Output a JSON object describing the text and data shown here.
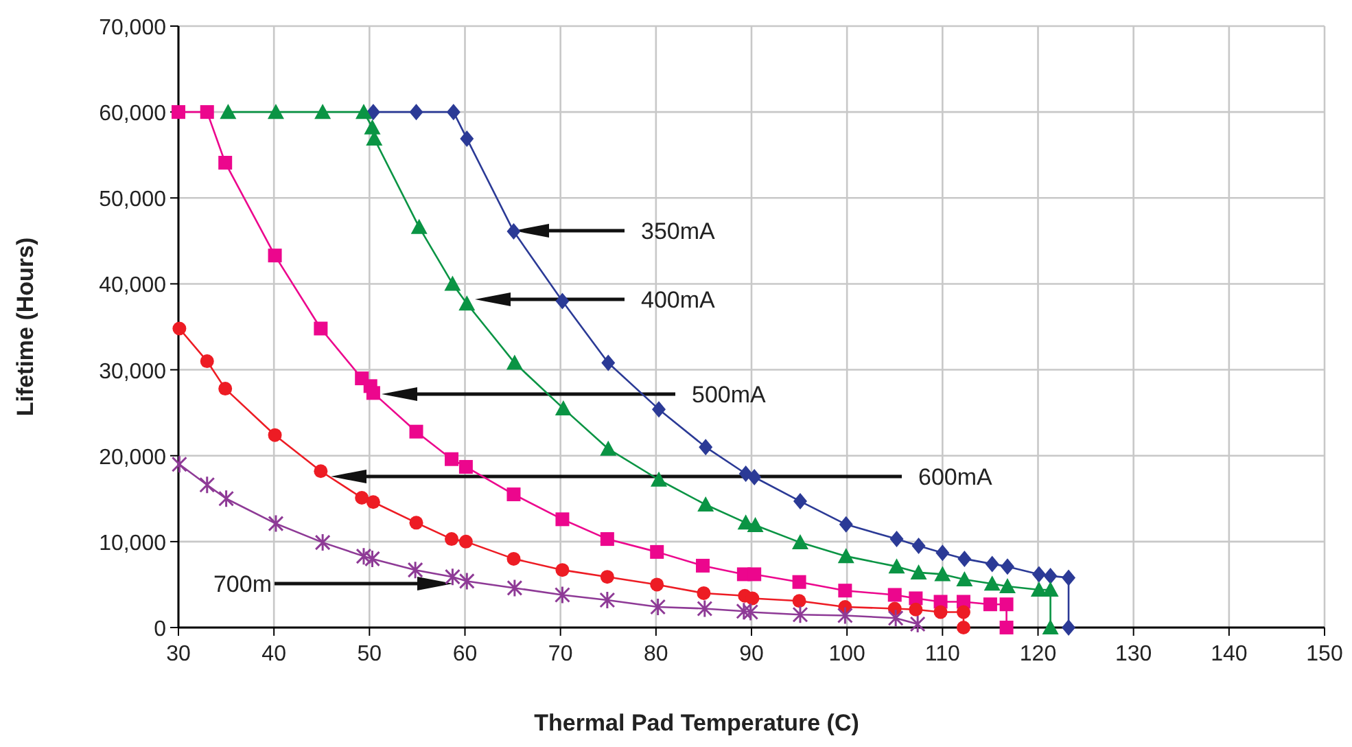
{
  "chart_data": {
    "type": "line",
    "xlabel": "Thermal Pad Temperature (C)",
    "ylabel": "Lifetime (Hours)",
    "xlim": [
      30,
      150
    ],
    "xticks": [
      30,
      40,
      50,
      60,
      70,
      80,
      90,
      100,
      110,
      120,
      130,
      140,
      150
    ],
    "ylim": [
      0,
      70000
    ],
    "yticks": [
      {
        "value": 0,
        "label": "0"
      },
      {
        "value": 10000,
        "label": "10,000"
      },
      {
        "value": 20000,
        "label": "20,000"
      },
      {
        "value": 30000,
        "label": "30,000"
      },
      {
        "value": 40000,
        "label": "40,000"
      },
      {
        "value": 50000,
        "label": "50,000"
      },
      {
        "value": 60000,
        "label": "60,000"
      },
      {
        "value": 70000,
        "label": "70,000"
      }
    ],
    "grid": true,
    "line_style": "solid",
    "series": [
      {
        "color": "#2b3a96",
        "marker": "diamond",
        "x": [
          50.4,
          54.9,
          58.8,
          60.2,
          65.1,
          70.2,
          75.0,
          80.3,
          85.2,
          89.4,
          90.3,
          95.1,
          99.9,
          105.2,
          107.5,
          110.0,
          112.3,
          115.2,
          116.8,
          120.1,
          121.3,
          123.2,
          123.2
        ],
        "values": [
          60000,
          60000,
          60000,
          56900,
          46100,
          38000,
          30800,
          25400,
          21000,
          17900,
          17500,
          14700,
          12000,
          10300,
          9500,
          8700,
          8000,
          7400,
          7100,
          6200,
          6000,
          5800,
          0
        ]
      },
      {
        "color": "#0a9444",
        "marker": "triangle",
        "x": [
          35.2,
          40.2,
          45.1,
          49.4,
          50.3,
          50.5,
          55.2,
          58.7,
          60.2,
          65.2,
          70.3,
          75.0,
          80.3,
          85.2,
          89.4,
          90.4,
          95.1,
          99.9,
          105.2,
          107.5,
          110.0,
          112.3,
          115.2,
          116.8,
          120.1,
          121.3,
          121.3
        ],
        "values": [
          60000,
          60000,
          60000,
          60000,
          58200,
          56900,
          46600,
          40000,
          37700,
          30800,
          25500,
          20800,
          17200,
          14300,
          12200,
          11900,
          9900,
          8300,
          7100,
          6400,
          6200,
          5600,
          5100,
          4800,
          4400,
          4400,
          0
        ]
      },
      {
        "color": "#ec068d",
        "marker": "square",
        "x": [
          30.0,
          33.0,
          34.9,
          40.1,
          44.9,
          49.2,
          50.1,
          50.4,
          54.9,
          58.6,
          60.1,
          65.1,
          70.2,
          74.9,
          80.1,
          84.9,
          89.2,
          90.3,
          95.0,
          99.8,
          105.0,
          107.2,
          109.8,
          112.2,
          115.0,
          116.7,
          116.7
        ],
        "values": [
          60000,
          60000,
          54100,
          43300,
          34800,
          29000,
          28100,
          27300,
          22800,
          19600,
          18700,
          15500,
          12600,
          10300,
          8800,
          7200,
          6200,
          6200,
          5300,
          4300,
          3800,
          3400,
          3000,
          3000,
          2700,
          2700,
          0
        ]
      },
      {
        "color": "#ed1c24",
        "marker": "circle",
        "x": [
          30.1,
          33.0,
          34.9,
          40.1,
          44.9,
          49.2,
          50.4,
          54.9,
          58.6,
          60.1,
          65.1,
          70.2,
          74.9,
          80.1,
          85.0,
          89.3,
          90.1,
          95.0,
          99.8,
          105.0,
          107.2,
          109.8,
          112.2,
          112.2
        ],
        "values": [
          34800,
          31000,
          27800,
          22400,
          18200,
          15100,
          14600,
          12200,
          10300,
          10000,
          8000,
          6700,
          5900,
          5000,
          4000,
          3700,
          3400,
          3100,
          2400,
          2200,
          2100,
          1800,
          1800,
          0
        ]
      },
      {
        "color": "#8e3a96",
        "marker": "cross",
        "x": [
          30.1,
          33.0,
          35.0,
          40.2,
          45.1,
          49.4,
          50.3,
          54.8,
          58.7,
          60.2,
          65.2,
          70.2,
          74.9,
          80.2,
          85.1,
          89.2,
          89.9,
          95.1,
          99.8,
          105.1,
          107.4
        ],
        "values": [
          19000,
          16600,
          15000,
          12100,
          9900,
          8300,
          8000,
          6700,
          5900,
          5400,
          4600,
          3800,
          3200,
          2400,
          2200,
          1900,
          1800,
          1500,
          1400,
          1100,
          400
        ]
      }
    ],
    "annotations": [
      "350mA",
      "400mA",
      "500mA",
      "600mA",
      "700m"
    ]
  }
}
